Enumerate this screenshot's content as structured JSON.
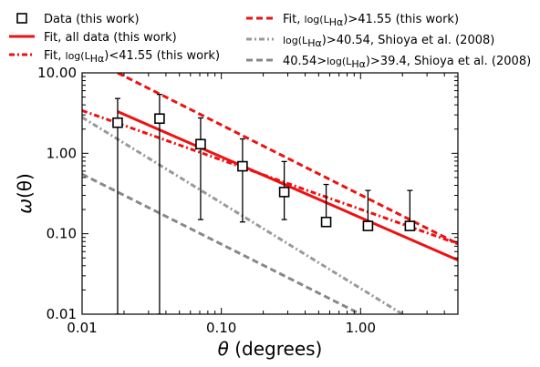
{
  "chart_data": {
    "type": "scatter",
    "xlabel_symbol": "θ",
    "xlabel_rest": " (degrees)",
    "ylabel_symbol": "ω",
    "ylabel_rest": "(θ)",
    "x_scale": "log",
    "y_scale": "log",
    "xlim": [
      0.01,
      5.0
    ],
    "ylim": [
      0.01,
      10.0
    ],
    "x_ticks": [
      {
        "value": 0.01,
        "label": "0.01"
      },
      {
        "value": 0.1,
        "label": "0.10"
      },
      {
        "value": 1.0,
        "label": "1.00"
      }
    ],
    "y_ticks": [
      {
        "value": 0.01,
        "label": "0.01"
      },
      {
        "value": 0.1,
        "label": "0.10"
      },
      {
        "value": 1.0,
        "label": "1.00"
      },
      {
        "value": 10.0,
        "label": "10.00"
      }
    ],
    "grid": false,
    "legend_placement": "top",
    "series": [
      {
        "name": "Data (this work)",
        "kind": "points",
        "color": "#000000",
        "points": [
          {
            "x": 0.018,
            "y": 2.4,
            "yerr_low": 2.4,
            "yerr_high": 2.4
          },
          {
            "x": 0.036,
            "y": 2.7,
            "yerr_low": 2.7,
            "yerr_high": 2.7
          },
          {
            "x": 0.071,
            "y": 1.3,
            "yerr_low": 1.15,
            "yerr_high": 1.45
          },
          {
            "x": 0.142,
            "y": 0.69,
            "yerr_low": 0.55,
            "yerr_high": 0.82
          },
          {
            "x": 0.283,
            "y": 0.33,
            "yerr_low": 0.18,
            "yerr_high": 0.46
          },
          {
            "x": 0.566,
            "y": 0.14,
            "yerr_low": 0.01,
            "yerr_high": 0.27
          },
          {
            "x": 1.13,
            "y": 0.125,
            "yerr_low": 0.01,
            "yerr_high": 0.22
          },
          {
            "x": 2.26,
            "y": 0.125,
            "yerr_low": 0.01,
            "yerr_high": 0.22
          }
        ]
      },
      {
        "name": "Fit, all data (this work)",
        "kind": "line",
        "color": "#ee1111",
        "style": "solid",
        "x": [
          0.018,
          5.0
        ],
        "y": [
          3.3,
          0.047
        ]
      },
      {
        "name": "Fit, log(L_Hα)<41.55 (this work)",
        "name_parts": [
          "Fit, ",
          "log(L",
          "Hα",
          ")<41.55 (this work)"
        ],
        "kind": "line",
        "color": "#ee1111",
        "style": "dashdot",
        "x": [
          0.01,
          5.0
        ],
        "y": [
          3.4,
          0.075
        ]
      },
      {
        "name": "Fit, log(L_Hα)>41.55 (this work)",
        "name_parts": [
          "Fit, ",
          "log(L",
          "Hα",
          ")>41.55 (this work)"
        ],
        "kind": "line",
        "color": "#ee1111",
        "style": "dashed",
        "x": [
          0.018,
          5.0
        ],
        "y": [
          10.0,
          0.075
        ]
      },
      {
        "name": "log(L_Hα)>40.54, Shioya et al. (2008)",
        "name_parts": [
          "",
          "log(L",
          "Hα",
          ")>40.54, Shioya et al. (2008)"
        ],
        "kind": "line",
        "color": "#999999",
        "style": "dashdot",
        "x": [
          0.01,
          2.0
        ],
        "y": [
          2.8,
          0.01
        ]
      },
      {
        "name": "40.54>log(L_Hα)>39.4, Shioya et al. (2008)",
        "name_parts": [
          "40.54>",
          "log(L",
          "Hα",
          ")>39.4, Shioya et al. (2008)"
        ],
        "kind": "line",
        "color": "#888888",
        "style": "dashed",
        "x": [
          0.01,
          1.0
        ],
        "y": [
          0.55,
          0.01
        ]
      }
    ]
  }
}
